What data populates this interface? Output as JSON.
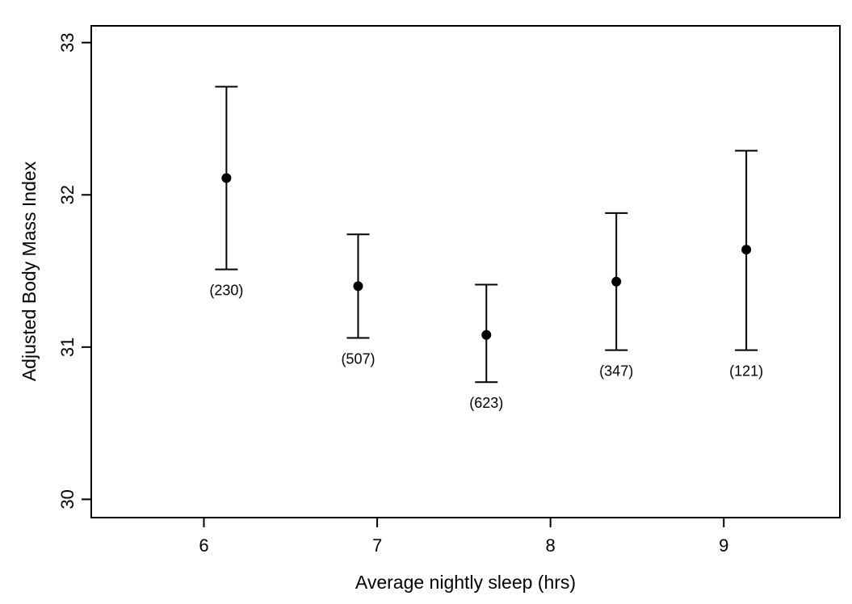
{
  "chart_data": {
    "type": "scatter",
    "subtype": "means-with-error-bars",
    "xlabel": "Average nightly sleep (hrs)",
    "ylabel": "Adjusted Body Mass Index",
    "xlim": [
      5.35,
      9.67
    ],
    "ylim": [
      29.88,
      33.11
    ],
    "xticks": [
      6,
      7,
      8,
      9
    ],
    "yticks": [
      30,
      31,
      32,
      33
    ],
    "grid": false,
    "marker": "filled-circle",
    "points": [
      {
        "x": 6.13,
        "y": 32.11,
        "ci_low": 31.51,
        "ci_high": 32.71,
        "count_label": "(230)"
      },
      {
        "x": 6.89,
        "y": 31.4,
        "ci_low": 31.06,
        "ci_high": 31.74,
        "count_label": "(507)"
      },
      {
        "x": 7.63,
        "y": 31.08,
        "ci_low": 30.77,
        "ci_high": 31.41,
        "count_label": "(623)"
      },
      {
        "x": 8.38,
        "y": 31.43,
        "ci_low": 30.98,
        "ci_high": 31.88,
        "count_label": "(347)"
      },
      {
        "x": 9.13,
        "y": 31.64,
        "ci_low": 30.98,
        "ci_high": 32.29,
        "count_label": "(121)"
      }
    ],
    "colors": {
      "foreground": "#000000",
      "background": "#ffffff"
    }
  }
}
